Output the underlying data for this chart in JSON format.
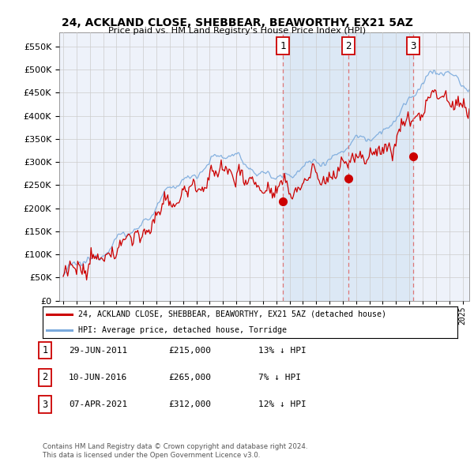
{
  "title": "24, ACKLAND CLOSE, SHEBBEAR, BEAWORTHY, EX21 5AZ",
  "subtitle": "Price paid vs. HM Land Registry's House Price Index (HPI)",
  "ylim": [
    0,
    580000
  ],
  "yticks": [
    0,
    50000,
    100000,
    150000,
    200000,
    250000,
    300000,
    350000,
    400000,
    450000,
    500000,
    550000
  ],
  "sales": [
    {
      "date_num": 2011.49,
      "price": 215000,
      "label": "1"
    },
    {
      "date_num": 2016.44,
      "price": 265000,
      "label": "2"
    },
    {
      "date_num": 2021.27,
      "price": 312000,
      "label": "3"
    }
  ],
  "sale_dates_str": [
    "29-JUN-2011",
    "10-JUN-2016",
    "07-APR-2021"
  ],
  "sale_prices_str": [
    "£215,000",
    "£265,000",
    "£312,000"
  ],
  "sale_hpi_str": [
    "13% ↓ HPI",
    "7% ↓ HPI",
    "12% ↓ HPI"
  ],
  "legend_line1": "24, ACKLAND CLOSE, SHEBBEAR, BEAWORTHY, EX21 5AZ (detached house)",
  "legend_line2": "HPI: Average price, detached house, Torridge",
  "footer1": "Contains HM Land Registry data © Crown copyright and database right 2024.",
  "footer2": "This data is licensed under the Open Government Licence v3.0.",
  "line_color_red": "#cc0000",
  "line_color_blue": "#7aaadd",
  "shade_color": "#dce8f5",
  "background_color": "#eef2fa",
  "grid_color": "#cccccc",
  "vline_color": "#dd7777",
  "xlim_start": 1994.7,
  "xlim_end": 2025.5
}
